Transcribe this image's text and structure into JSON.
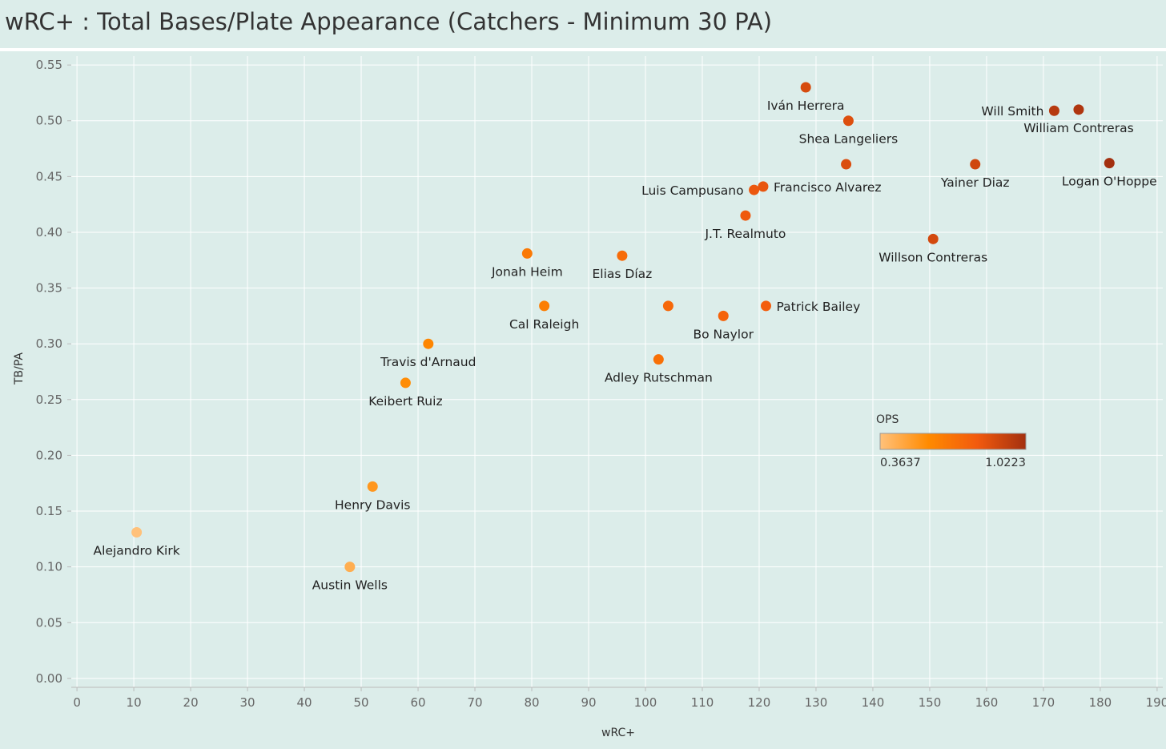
{
  "title": "wRC+ : Total Bases/Plate Appearance (Catchers - Minimum 30 PA)",
  "chart_data": {
    "type": "scatter",
    "title": "wRC+ : Total Bases/Plate Appearance (Catchers - Minimum 30 PA)",
    "xlabel": "wRC+",
    "ylabel": "TB/PA",
    "xlim": [
      -1,
      191
    ],
    "ylim": [
      -0.008,
      0.558
    ],
    "xticks": [
      0,
      10,
      20,
      30,
      40,
      50,
      60,
      70,
      80,
      90,
      100,
      110,
      120,
      130,
      140,
      150,
      160,
      170,
      180,
      190
    ],
    "yticks": [
      "0.00",
      "0.05",
      "0.10",
      "0.15",
      "0.20",
      "0.25",
      "0.30",
      "0.35",
      "0.40",
      "0.45",
      "0.50",
      "0.55"
    ],
    "grid": true,
    "color_legend": {
      "title": "OPS",
      "min_label": "0.3637",
      "max_label": "1.0223",
      "min": 0.3637,
      "max": 1.0223,
      "colors": [
        "#ffc17a",
        "#ff8a00",
        "#f25a0e",
        "#a3300f"
      ]
    },
    "points": [
      {
        "name": "Alejandro Kirk",
        "x": 10.5,
        "y": 0.131,
        "ops": 0.3637,
        "label_pos": "below"
      },
      {
        "name": "Austin Wells",
        "x": 48,
        "y": 0.1,
        "ops": 0.44,
        "label_pos": "below"
      },
      {
        "name": "Henry Davis",
        "x": 52,
        "y": 0.172,
        "ops": 0.53,
        "label_pos": "below"
      },
      {
        "name": "Keibert Ruiz",
        "x": 57.8,
        "y": 0.265,
        "ops": 0.57,
        "label_pos": "below"
      },
      {
        "name": "Travis d'Arnaud",
        "x": 61.8,
        "y": 0.3,
        "ops": 0.6,
        "label_pos": "below"
      },
      {
        "name": "Jonah Heim",
        "x": 79.2,
        "y": 0.381,
        "ops": 0.66,
        "label_pos": "below"
      },
      {
        "name": "Cal Raleigh",
        "x": 82.2,
        "y": 0.334,
        "ops": 0.64,
        "label_pos": "below"
      },
      {
        "name": "Elias Díaz",
        "x": 95.9,
        "y": 0.379,
        "ops": 0.72,
        "label_pos": "below"
      },
      {
        "name": "Adley Rutschman",
        "x": 102.3,
        "y": 0.286,
        "ops": 0.7,
        "label_pos": "below"
      },
      {
        "name": "",
        "x": 104,
        "y": 0.334,
        "ops": 0.74,
        "label_pos": "none"
      },
      {
        "name": "Bo Naylor",
        "x": 113.7,
        "y": 0.325,
        "ops": 0.76,
        "label_pos": "below"
      },
      {
        "name": "Patrick Bailey",
        "x": 121.2,
        "y": 0.334,
        "ops": 0.79,
        "label_pos": "right"
      },
      {
        "name": "J.T. Realmuto",
        "x": 117.6,
        "y": 0.415,
        "ops": 0.81,
        "label_pos": "below"
      },
      {
        "name": "Luis Campusano",
        "x": 119.1,
        "y": 0.438,
        "ops": 0.82,
        "label_pos": "left"
      },
      {
        "name": "Francisco Alvarez",
        "x": 120.7,
        "y": 0.441,
        "ops": 0.83,
        "label_pos": "right"
      },
      {
        "name": "Iván Herrera",
        "x": 128.2,
        "y": 0.53,
        "ops": 0.88,
        "label_pos": "below"
      },
      {
        "name": "Shea Langeliers",
        "x": 135.7,
        "y": 0.5,
        "ops": 0.86,
        "label_pos": "below"
      },
      {
        "name": "",
        "x": 135.3,
        "y": 0.461,
        "ops": 0.87,
        "label_pos": "none"
      },
      {
        "name": "Willson Contreras",
        "x": 150.6,
        "y": 0.394,
        "ops": 0.89,
        "label_pos": "below"
      },
      {
        "name": "Yainer Diaz",
        "x": 158,
        "y": 0.461,
        "ops": 0.9,
        "label_pos": "below"
      },
      {
        "name": "Will Smith",
        "x": 171.9,
        "y": 0.509,
        "ops": 0.97,
        "label_pos": "left"
      },
      {
        "name": "William Contreras",
        "x": 176.2,
        "y": 0.51,
        "ops": 0.99,
        "label_pos": "below"
      },
      {
        "name": "Logan O'Hoppe",
        "x": 181.6,
        "y": 0.462,
        "ops": 1.0223,
        "label_pos": "below"
      }
    ]
  }
}
